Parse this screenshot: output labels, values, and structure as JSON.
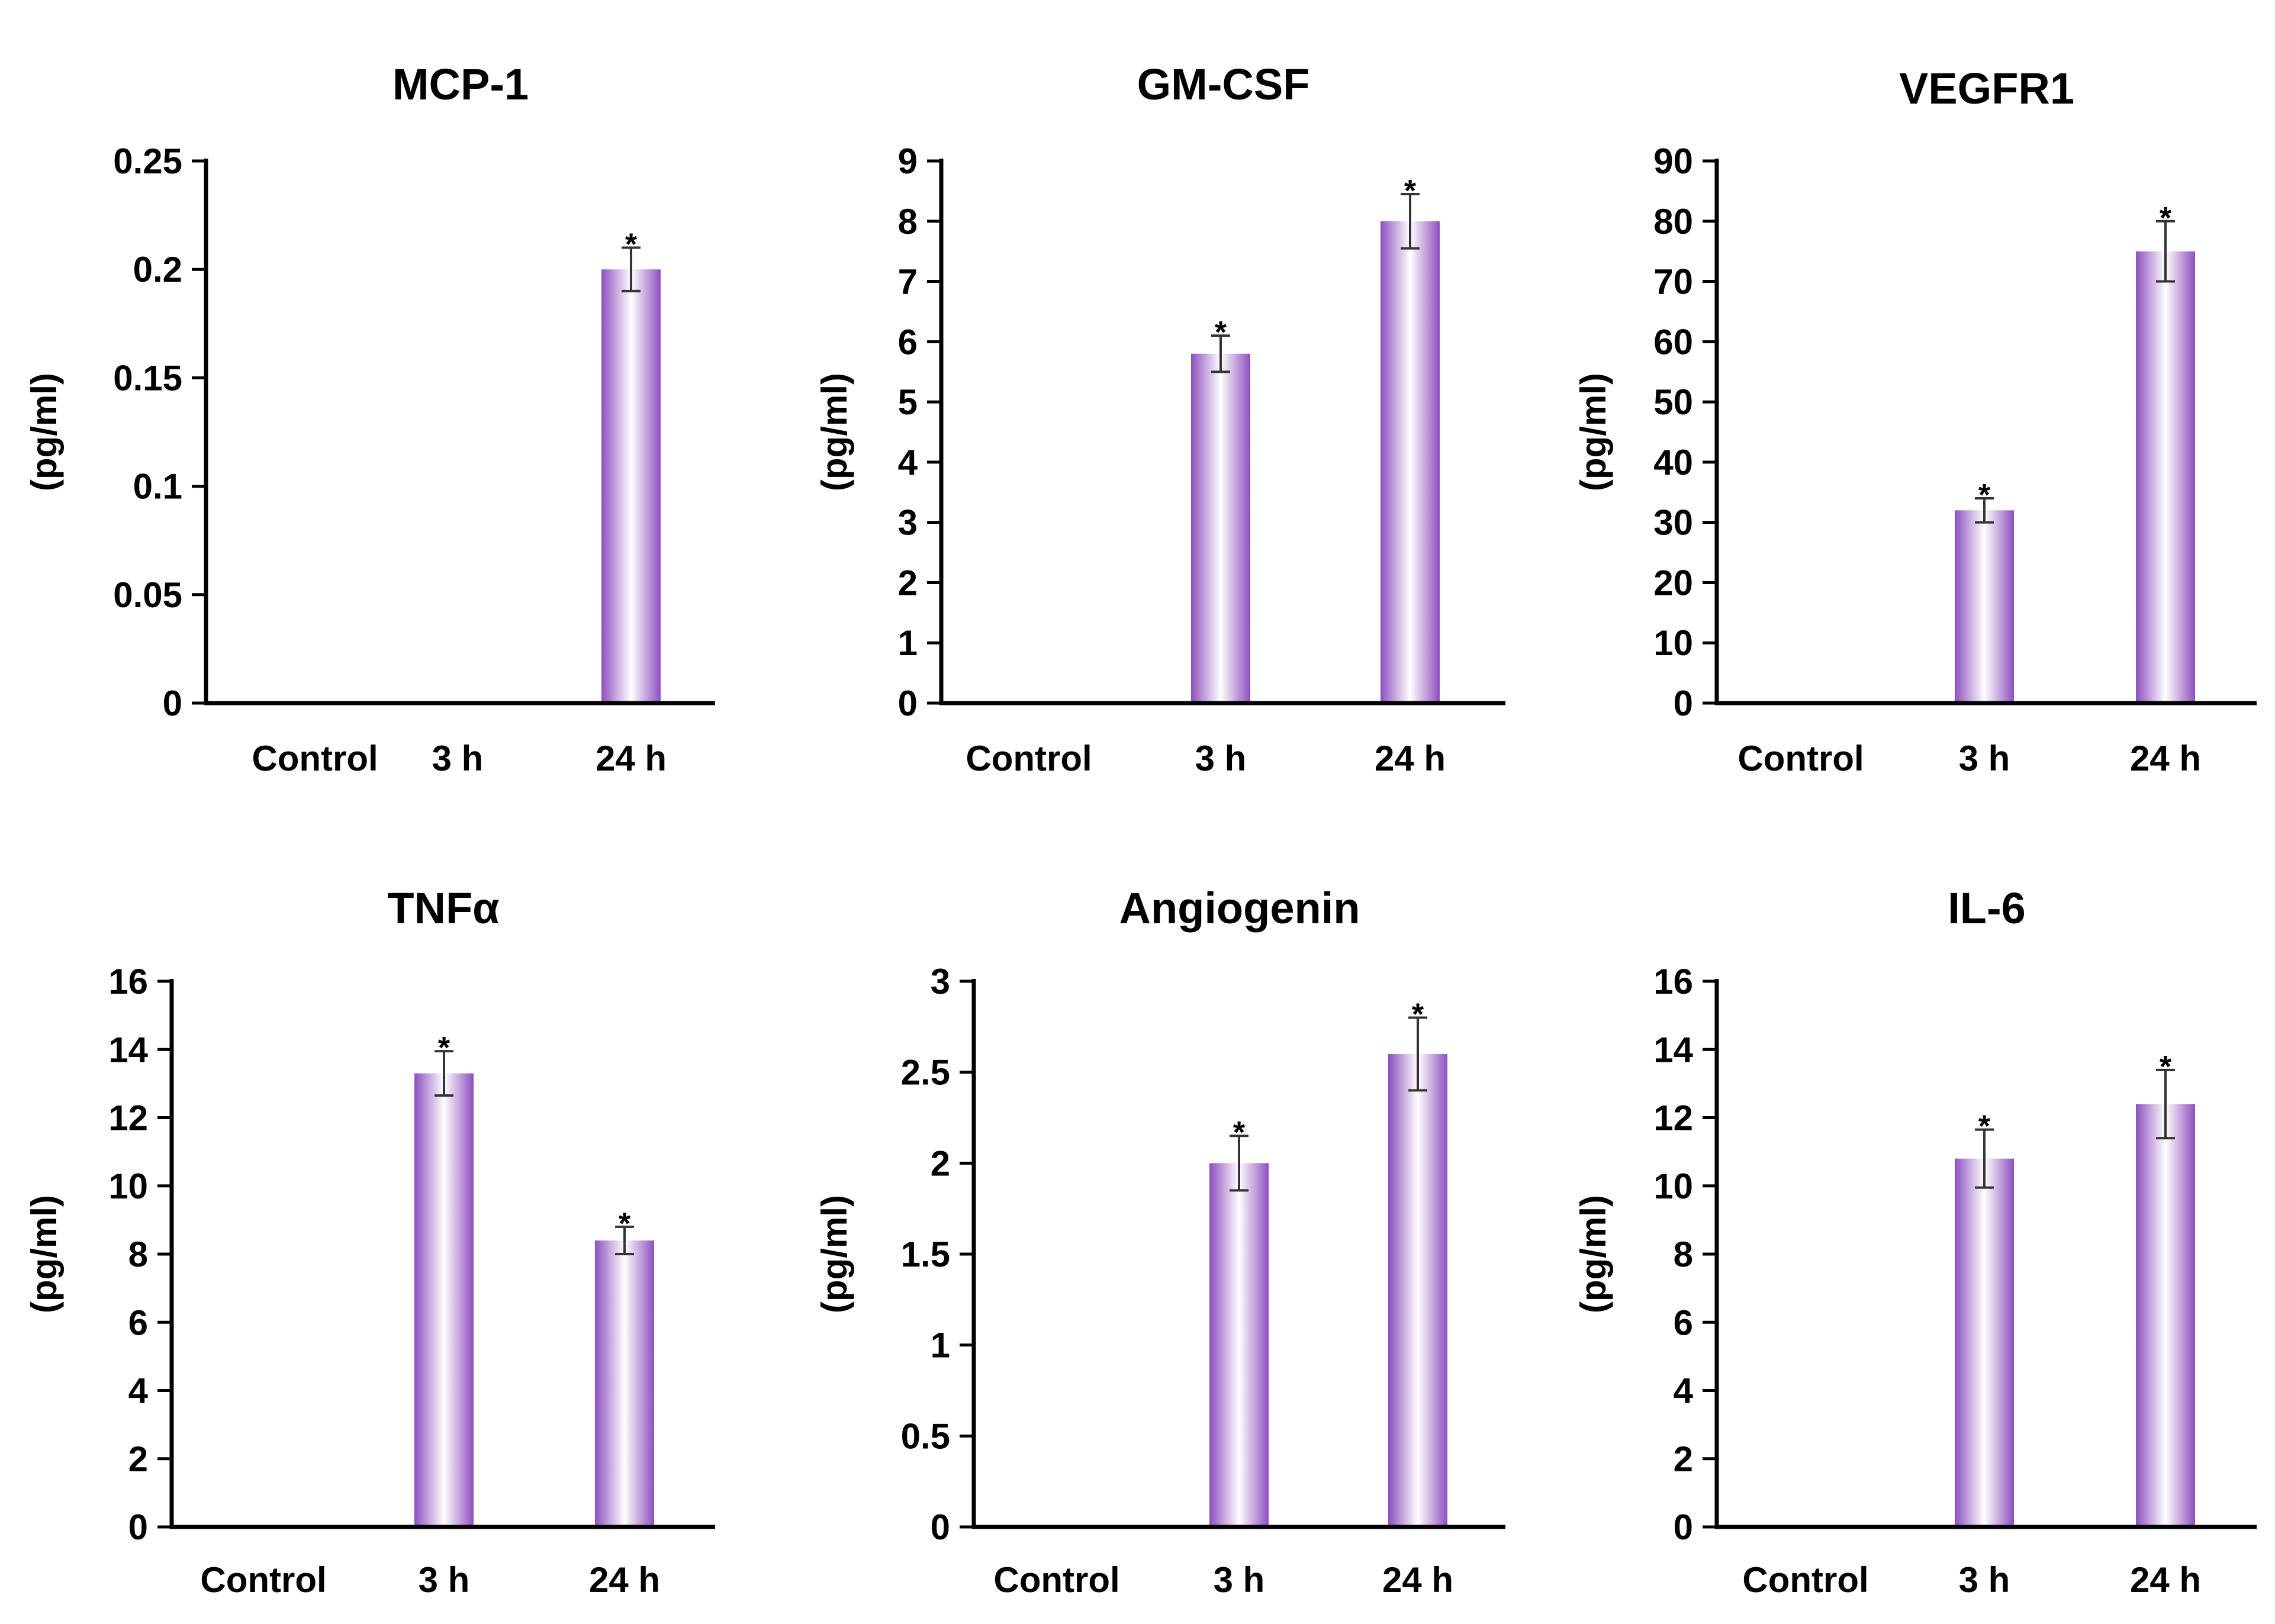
{
  "accent_color": "#8e4fbf",
  "chart_data": [
    {
      "type": "bar",
      "title": "MCP-1",
      "ylabel": "(pg/ml)",
      "categories": [
        "Control",
        "3 h",
        "24 h"
      ],
      "values": [
        0,
        0,
        0.2
      ],
      "errors": [
        0,
        0,
        0.01
      ],
      "significance": [
        "",
        "",
        "*"
      ],
      "ylim": [
        0,
        0.25
      ],
      "yticks": [
        0,
        0.05,
        0.1,
        0.15,
        0.2,
        0.25
      ],
      "ytick_labels": [
        "0",
        "0.05",
        "0.1",
        "0.15",
        "0.2",
        "0.25"
      ]
    },
    {
      "type": "bar",
      "title": "GM-CSF",
      "ylabel": "(pg/ml)",
      "categories": [
        "Control",
        "3 h",
        "24 h"
      ],
      "values": [
        0,
        5.8,
        8.0
      ],
      "errors": [
        0,
        0.3,
        0.45
      ],
      "significance": [
        "",
        "*",
        "*"
      ],
      "ylim": [
        0,
        9
      ],
      "yticks": [
        0,
        1,
        2,
        3,
        4,
        5,
        6,
        7,
        8,
        9
      ],
      "ytick_labels": [
        "0",
        "1",
        "2",
        "3",
        "4",
        "5",
        "6",
        "7",
        "8",
        "9"
      ]
    },
    {
      "type": "bar",
      "title": "VEGFR1",
      "ylabel": "(pg/ml)",
      "categories": [
        "Control",
        "3 h",
        "24 h"
      ],
      "values": [
        0,
        32,
        75
      ],
      "errors": [
        0,
        2,
        5
      ],
      "significance": [
        "",
        "*",
        "*"
      ],
      "ylim": [
        0,
        90
      ],
      "yticks": [
        0,
        10,
        20,
        30,
        40,
        50,
        60,
        70,
        80,
        90
      ],
      "ytick_labels": [
        "0",
        "10",
        "20",
        "30",
        "40",
        "50",
        "60",
        "70",
        "80",
        "90"
      ]
    },
    {
      "type": "bar",
      "title": "TNFα",
      "ylabel": "(pg/ml)",
      "categories": [
        "Control",
        "3 h",
        "24 h"
      ],
      "values": [
        0,
        13.3,
        8.4
      ],
      "errors": [
        0,
        0.65,
        0.4
      ],
      "significance": [
        "",
        "*",
        "*"
      ],
      "ylim": [
        0,
        16
      ],
      "yticks": [
        0,
        2,
        4,
        6,
        8,
        10,
        12,
        14,
        16
      ],
      "ytick_labels": [
        "0",
        "2",
        "4",
        "6",
        "8",
        "10",
        "12",
        "14",
        "16"
      ]
    },
    {
      "type": "bar",
      "title": "Angiogenin",
      "ylabel": "(pg/ml)",
      "categories": [
        "Control",
        "3 h",
        "24 h"
      ],
      "values": [
        0,
        2.0,
        2.6
      ],
      "errors": [
        0,
        0.15,
        0.2
      ],
      "significance": [
        "",
        "*",
        "*"
      ],
      "ylim": [
        0,
        3
      ],
      "yticks": [
        0,
        0.5,
        1,
        1.5,
        2,
        2.5,
        3
      ],
      "ytick_labels": [
        "0",
        "0.5",
        "1",
        "1.5",
        "2",
        "2.5",
        "3"
      ]
    },
    {
      "type": "bar",
      "title": "IL-6",
      "ylabel": "(pg/ml)",
      "categories": [
        "Control",
        "3 h",
        "24 h"
      ],
      "values": [
        0,
        10.8,
        12.4
      ],
      "errors": [
        0,
        0.85,
        1.0
      ],
      "significance": [
        "",
        "*",
        "*"
      ],
      "ylim": [
        0,
        16
      ],
      "yticks": [
        0,
        2,
        4,
        6,
        8,
        10,
        12,
        14,
        16
      ],
      "ytick_labels": [
        "0",
        "2",
        "4",
        "6",
        "8",
        "10",
        "12",
        "14",
        "16"
      ]
    }
  ]
}
